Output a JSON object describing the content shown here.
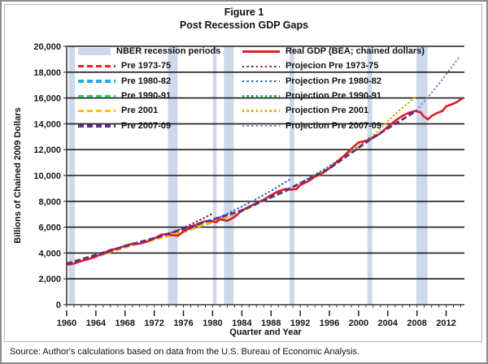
{
  "figure": {
    "title": "Figure 1",
    "subtitle": "Post Recession GDP Gaps",
    "source": "Source: Author's calculations based on data from the U.S. Bureau of Economic Analysis."
  },
  "chart_data": {
    "type": "line",
    "title": "Figure 1",
    "subtitle": "Post Recession GDP Gaps",
    "xlabel": "Quarter and Year",
    "ylabel": "Billions of Chained 2009 Dollars",
    "xlim": [
      1960,
      2014.5
    ],
    "ylim": [
      0,
      20000
    ],
    "ytick_step": 2000,
    "x_ticks": [
      1960,
      1964,
      1968,
      1972,
      1976,
      1980,
      1984,
      1988,
      1992,
      1996,
      2000,
      2004,
      2008,
      2012
    ],
    "quarter_tick_label": "I",
    "minor_tick_years": [
      1960,
      2014
    ],
    "grid": "horizontal-only",
    "legend_position": "inside-top",
    "colors": {
      "recession_band": "#cdd9ea",
      "gridline": "#1b1b1b",
      "axis": "#3a3a3a",
      "real_gdp": "#e11b22",
      "pre1973": "#ea2127",
      "pre1980": "#2aa9e0",
      "pre1990": "#31c566",
      "pre2001": "#ffc000",
      "pre2007": "#5b2e91",
      "proj1973": "#8c1a1e",
      "proj1980": "#2161c0",
      "proj1990": "#1b9e51",
      "proj2001": "#d3a800",
      "proj2007": "#9b6fd6"
    },
    "recession_bands": [
      [
        1960.29,
        1961.13
      ],
      [
        1973.87,
        1975.2
      ],
      [
        1980.04,
        1980.54
      ],
      [
        1981.54,
        1982.88
      ],
      [
        1990.54,
        1991.2
      ],
      [
        2001.2,
        2001.87
      ],
      [
        2007.92,
        2009.45
      ]
    ],
    "series": [
      {
        "key": "proj1973",
        "name": "Projecion Pre 1973-75",
        "style": "dotted",
        "width": 2.2,
        "points": [
          [
            1973.9,
            5470
          ],
          [
            1975.5,
            5830
          ],
          [
            1977,
            6210
          ],
          [
            1978.5,
            6620
          ],
          [
            1980.1,
            7080
          ]
        ]
      },
      {
        "key": "proj1980",
        "name": "Projection Pre 1980-82",
        "style": "dotted",
        "width": 2.2,
        "points": [
          [
            1980.1,
            6530
          ],
          [
            1982,
            7040
          ],
          [
            1984,
            7590
          ],
          [
            1986,
            8180
          ],
          [
            1988,
            8810
          ],
          [
            1990.6,
            9700
          ]
        ]
      },
      {
        "key": "proj1990",
        "name": "Projection Pre 1990-91",
        "style": "dotted",
        "width": 2.2,
        "points": [
          [
            1990.6,
            8960
          ],
          [
            1993,
            9740
          ],
          [
            1995.5,
            10560
          ],
          [
            1998,
            11480
          ],
          [
            2000,
            12250
          ],
          [
            2001.4,
            12900
          ]
        ]
      },
      {
        "key": "proj2001",
        "name": "Projection Pre 2001",
        "style": "dotted",
        "width": 2.2,
        "points": [
          [
            2001.3,
            12760
          ],
          [
            2003,
            13620
          ],
          [
            2005,
            14760
          ],
          [
            2006.5,
            15480
          ],
          [
            2007.95,
            16150
          ]
        ]
      },
      {
        "key": "proj2007",
        "name": "Projection Pre 2007-09",
        "style": "dotted",
        "width": 2.2,
        "points": [
          [
            2007.95,
            15060
          ],
          [
            2009.5,
            16050
          ],
          [
            2011,
            17100
          ],
          [
            2012.5,
            18200
          ],
          [
            2013.9,
            19250
          ]
        ]
      },
      {
        "key": "pre1980",
        "name": "Pre 1980-82",
        "style": "dashed",
        "width": 2.8,
        "points": [
          [
            1960,
            3190
          ],
          [
            1963,
            3600
          ],
          [
            1966,
            4170
          ],
          [
            1969,
            4690
          ],
          [
            1972,
            5120
          ],
          [
            1975,
            5560
          ],
          [
            1977.5,
            6000
          ],
          [
            1980.1,
            6520
          ]
        ]
      },
      {
        "key": "pre1990",
        "name": "Pre 1990-91",
        "style": "dashed",
        "width": 2.8,
        "points": [
          [
            1960,
            3120
          ],
          [
            1964,
            3700
          ],
          [
            1968,
            4480
          ],
          [
            1972,
            5090
          ],
          [
            1976,
            5640
          ],
          [
            1980,
            6390
          ],
          [
            1984,
            7230
          ],
          [
            1987,
            8050
          ],
          [
            1990.6,
            8950
          ]
        ]
      },
      {
        "key": "pre2001",
        "name": "Pre 2001",
        "style": "dashed",
        "width": 2.8,
        "points": [
          [
            1960,
            3100
          ],
          [
            1965,
            3920
          ],
          [
            1970,
            4750
          ],
          [
            1975,
            5480
          ],
          [
            1980,
            6420
          ],
          [
            1985,
            7520
          ],
          [
            1990,
            8870
          ],
          [
            1995,
            10150
          ],
          [
            1998,
            11400
          ],
          [
            2001.3,
            12730
          ]
        ]
      },
      {
        "key": "pre1973",
        "name": "Pre 1973-75",
        "style": "dashed",
        "width": 2.8,
        "points": [
          [
            1960,
            3150
          ],
          [
            1962,
            3430
          ],
          [
            1964,
            3760
          ],
          [
            1966,
            4150
          ],
          [
            1968,
            4540
          ],
          [
            1970,
            4840
          ],
          [
            1972,
            5140
          ],
          [
            1973.9,
            5470
          ]
        ]
      },
      {
        "key": "real_gdp",
        "name": "Real GDP (BEA; chained dollars)",
        "style": "solid",
        "width": 2.6,
        "points": [
          [
            1960,
            3108
          ],
          [
            1960.5,
            3125
          ],
          [
            1961,
            3180
          ],
          [
            1962,
            3375
          ],
          [
            1963,
            3527
          ],
          [
            1964,
            3731
          ],
          [
            1965,
            3977
          ],
          [
            1966,
            4239
          ],
          [
            1967,
            4355
          ],
          [
            1968,
            4569
          ],
          [
            1969,
            4713
          ],
          [
            1970,
            4722
          ],
          [
            1971,
            4878
          ],
          [
            1972,
            5134
          ],
          [
            1973,
            5424
          ],
          [
            1973.75,
            5450
          ],
          [
            1974.5,
            5380
          ],
          [
            1975.25,
            5335
          ],
          [
            1976,
            5675
          ],
          [
            1977,
            5937
          ],
          [
            1978,
            6267
          ],
          [
            1979,
            6466
          ],
          [
            1980,
            6450
          ],
          [
            1980.5,
            6380
          ],
          [
            1981,
            6618
          ],
          [
            1982,
            6491
          ],
          [
            1983,
            6792
          ],
          [
            1984,
            7285
          ],
          [
            1985,
            7594
          ],
          [
            1986,
            7861
          ],
          [
            1987,
            8133
          ],
          [
            1988,
            8475
          ],
          [
            1989,
            8786
          ],
          [
            1990,
            8955
          ],
          [
            1990.75,
            8900
          ],
          [
            1991.5,
            8965
          ],
          [
            1992,
            9267
          ],
          [
            1993,
            9521
          ],
          [
            1994,
            9905
          ],
          [
            1995,
            10175
          ],
          [
            1996,
            10561
          ],
          [
            1997,
            11035
          ],
          [
            1998,
            11526
          ],
          [
            1999,
            12066
          ],
          [
            2000,
            12560
          ],
          [
            2001,
            12682
          ],
          [
            2002,
            12909
          ],
          [
            2003,
            13271
          ],
          [
            2004,
            13774
          ],
          [
            2005,
            14234
          ],
          [
            2006,
            14614
          ],
          [
            2007,
            14874
          ],
          [
            2007.75,
            14992
          ],
          [
            2008.5,
            14890
          ],
          [
            2008.9,
            14577
          ],
          [
            2009.5,
            14356
          ],
          [
            2010,
            14604
          ],
          [
            2010.75,
            14840
          ],
          [
            2011.5,
            15000
          ],
          [
            2012,
            15355
          ],
          [
            2012.75,
            15500
          ],
          [
            2013.5,
            15700
          ],
          [
            2014.2,
            15960
          ]
        ]
      },
      {
        "key": "pre2007",
        "name": "Pre 2007-09",
        "style": "dashed",
        "width": 2.8,
        "points": [
          [
            1960,
            3170
          ],
          [
            1966,
            4200
          ],
          [
            1972,
            5160
          ],
          [
            1978,
            6230
          ],
          [
            1984,
            7300
          ],
          [
            1990,
            8830
          ],
          [
            1996,
            10540
          ],
          [
            2002,
            12950
          ],
          [
            2007.95,
            15020
          ]
        ]
      }
    ],
    "legend": {
      "left": [
        {
          "label": "NBER recession periods",
          "style": "band",
          "colorKey": "recession_band"
        },
        {
          "label": "Pre 1973-75",
          "style": "dashed",
          "colorKey": "pre1973"
        },
        {
          "label": "Pre 1980-82",
          "style": "dashed",
          "colorKey": "pre1980"
        },
        {
          "label": "Pre 1990-91",
          "style": "dashed",
          "colorKey": "pre1990"
        },
        {
          "label": "Pre 2001",
          "style": "dashed",
          "colorKey": "pre2001"
        },
        {
          "label": "Pre 2007-09",
          "style": "dashed",
          "colorKey": "pre2007"
        }
      ],
      "right": [
        {
          "label": "Real GDP (BEA; chained dollars)",
          "style": "solid",
          "colorKey": "real_gdp"
        },
        {
          "label": "Projecion Pre 1973-75",
          "style": "dotted",
          "colorKey": "proj1973"
        },
        {
          "label": "Projection Pre 1980-82",
          "style": "dotted",
          "colorKey": "proj1980"
        },
        {
          "label": "Projection Pre 1990-91",
          "style": "dotted",
          "colorKey": "proj1990"
        },
        {
          "label": "Projection Pre 2001",
          "style": "dotted",
          "colorKey": "proj2001"
        },
        {
          "label": "Projection Pre 2007-09",
          "style": "dotted",
          "colorKey": "proj2007"
        }
      ]
    }
  }
}
